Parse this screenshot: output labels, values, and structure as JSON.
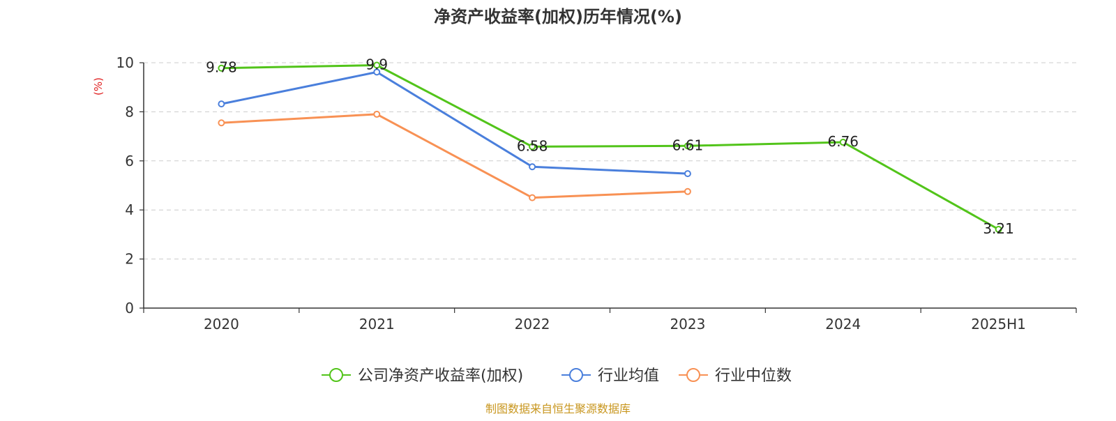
{
  "chart_data": {
    "type": "line",
    "title": "净资产收益率(加权)历年情况(%)",
    "ylabel": "(%)",
    "xlabel": "",
    "categories": [
      "2020",
      "2021",
      "2022",
      "2023",
      "2024",
      "2025H1"
    ],
    "ylim": [
      0,
      10
    ],
    "yticks": [
      0,
      2,
      4,
      6,
      8,
      10
    ],
    "grid": true,
    "legend_position": "bottom",
    "series": [
      {
        "name": "公司净资产收益率(加权)",
        "color": "#52c41a",
        "values": [
          9.78,
          9.9,
          6.58,
          6.61,
          6.76,
          3.21
        ],
        "labels": [
          "9.78",
          "9.9",
          "6.58",
          "6.61",
          "6.76",
          "3.21"
        ],
        "show_labels": true
      },
      {
        "name": "行业均值",
        "color": "#4a7fdc",
        "values": [
          8.32,
          9.62,
          5.76,
          5.48,
          null,
          null
        ],
        "show_labels": false
      },
      {
        "name": "行业中位数",
        "color": "#f89154",
        "values": [
          7.55,
          7.9,
          4.5,
          4.75,
          null,
          null
        ],
        "show_labels": false
      }
    ]
  },
  "source": "制图数据来自恒生聚源数据库",
  "colors": {
    "axis": "#333333",
    "grid": "#cccccc",
    "ylabel": "#e02020",
    "source": "#c8961e",
    "title": "#333333"
  }
}
